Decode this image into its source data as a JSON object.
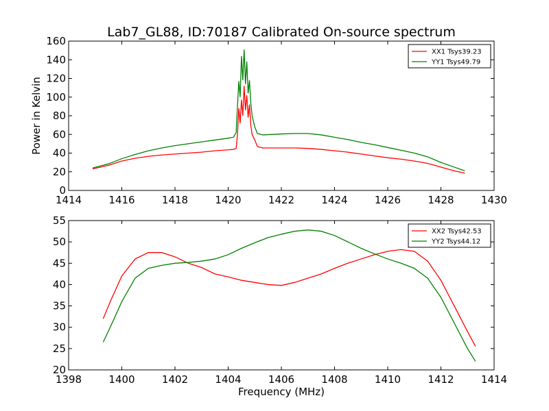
{
  "title": "Lab7_GL88, ID:70187 Calibrated On-source spectrum",
  "chart_data": [
    {
      "type": "line",
      "ylabel": "Power in Kelvin",
      "xlabel": "",
      "xlim": [
        1414,
        1430
      ],
      "ylim": [
        0,
        160
      ],
      "xticks": [
        1414,
        1416,
        1418,
        1420,
        1422,
        1424,
        1426,
        1428,
        1430
      ],
      "yticks": [
        0,
        20,
        40,
        60,
        80,
        100,
        120,
        140,
        160
      ],
      "legend": "top-right",
      "grid": false,
      "series": [
        {
          "name": "XX1 Tsys39.23",
          "color": "#ff0000",
          "points": [
            [
              1414.9,
              23
            ],
            [
              1415.5,
              27
            ],
            [
              1416,
              31.5
            ],
            [
              1416.5,
              34.5
            ],
            [
              1417,
              36.5
            ],
            [
              1417.5,
              38
            ],
            [
              1418,
              39
            ],
            [
              1418.5,
              40
            ],
            [
              1419,
              41
            ],
            [
              1419.5,
              42.5
            ],
            [
              1420,
              43.5
            ],
            [
              1420.2,
              44
            ],
            [
              1420.3,
              45
            ],
            [
              1420.35,
              60
            ],
            [
              1420.4,
              88
            ],
            [
              1420.45,
              72
            ],
            [
              1420.5,
              97
            ],
            [
              1420.55,
              80
            ],
            [
              1420.6,
              112
            ],
            [
              1420.65,
              86
            ],
            [
              1420.7,
              102
            ],
            [
              1420.75,
              78
            ],
            [
              1420.8,
              92
            ],
            [
              1420.85,
              70
            ],
            [
              1420.9,
              60
            ],
            [
              1421,
              54
            ],
            [
              1421.1,
              47
            ],
            [
              1421.3,
              45.5
            ],
            [
              1422,
              45.5
            ],
            [
              1422.5,
              45.5
            ],
            [
              1423,
              45
            ],
            [
              1423.5,
              44
            ],
            [
              1424,
              42.5
            ],
            [
              1424.5,
              41
            ],
            [
              1425,
              39
            ],
            [
              1425.5,
              37
            ],
            [
              1426,
              35
            ],
            [
              1426.5,
              33.5
            ],
            [
              1427,
              31.5
            ],
            [
              1427.5,
              29
            ],
            [
              1428,
              25
            ],
            [
              1428.5,
              21
            ],
            [
              1428.9,
              18.5
            ]
          ]
        },
        {
          "name": "YY1 Tsys49.79",
          "color": "#008000",
          "points": [
            [
              1414.9,
              24
            ],
            [
              1415.5,
              28.5
            ],
            [
              1416,
              34
            ],
            [
              1416.5,
              38.5
            ],
            [
              1417,
              42.5
            ],
            [
              1417.5,
              45.5
            ],
            [
              1418,
              48
            ],
            [
              1418.5,
              50
            ],
            [
              1419,
              52
            ],
            [
              1419.5,
              54
            ],
            [
              1420,
              56
            ],
            [
              1420.2,
              57
            ],
            [
              1420.3,
              62
            ],
            [
              1420.35,
              90
            ],
            [
              1420.4,
              117
            ],
            [
              1420.45,
              100
            ],
            [
              1420.5,
              144
            ],
            [
              1420.55,
              118
            ],
            [
              1420.6,
              151
            ],
            [
              1420.65,
              114
            ],
            [
              1420.7,
              138
            ],
            [
              1420.75,
              104
            ],
            [
              1420.8,
              118
            ],
            [
              1420.85,
              94
            ],
            [
              1420.9,
              80
            ],
            [
              1421,
              68
            ],
            [
              1421.1,
              61
            ],
            [
              1421.3,
              59.5
            ],
            [
              1422,
              60.5
            ],
            [
              1422.5,
              61
            ],
            [
              1423,
              61
            ],
            [
              1423.5,
              59.5
            ],
            [
              1424,
              57
            ],
            [
              1424.5,
              54.5
            ],
            [
              1425,
              51.5
            ],
            [
              1425.5,
              49
            ],
            [
              1426,
              46
            ],
            [
              1426.5,
              43
            ],
            [
              1427,
              40
            ],
            [
              1427.5,
              36
            ],
            [
              1428,
              30
            ],
            [
              1428.5,
              25
            ],
            [
              1428.9,
              21
            ]
          ]
        }
      ]
    },
    {
      "type": "line",
      "ylabel": "",
      "xlabel": "Frequency (MHz)",
      "xlim": [
        1398,
        1414
      ],
      "ylim": [
        20,
        55
      ],
      "xticks": [
        1398,
        1400,
        1402,
        1404,
        1406,
        1408,
        1410,
        1412,
        1414
      ],
      "yticks": [
        20,
        25,
        30,
        35,
        40,
        45,
        50,
        55
      ],
      "legend": "top-right",
      "grid": false,
      "series": [
        {
          "name": "XX2 Tsys42.53",
          "color": "#ff0000",
          "points": [
            [
              1399.3,
              32
            ],
            [
              1399.6,
              36.5
            ],
            [
              1400,
              42
            ],
            [
              1400.5,
              46
            ],
            [
              1401,
              47.5
            ],
            [
              1401.5,
              47.5
            ],
            [
              1402,
              46.5
            ],
            [
              1402.5,
              45
            ],
            [
              1403,
              44
            ],
            [
              1403.5,
              42.5
            ],
            [
              1404,
              41.8
            ],
            [
              1404.5,
              41
            ],
            [
              1405,
              40.5
            ],
            [
              1405.5,
              40
            ],
            [
              1406,
              39.8
            ],
            [
              1406.5,
              40.5
            ],
            [
              1407,
              41.5
            ],
            [
              1407.5,
              42.5
            ],
            [
              1408,
              43.8
            ],
            [
              1408.5,
              45
            ],
            [
              1409,
              46
            ],
            [
              1409.5,
              47
            ],
            [
              1410,
              47.8
            ],
            [
              1410.5,
              48.2
            ],
            [
              1411,
              47.8
            ],
            [
              1411.5,
              45.5
            ],
            [
              1412,
              41
            ],
            [
              1412.5,
              35
            ],
            [
              1413,
              29
            ],
            [
              1413.3,
              25.5
            ]
          ]
        },
        {
          "name": "YY2 Tsys44.12",
          "color": "#008000",
          "points": [
            [
              1399.3,
              26.5
            ],
            [
              1399.6,
              30.5
            ],
            [
              1400,
              36
            ],
            [
              1400.5,
              41.5
            ],
            [
              1401,
              43.8
            ],
            [
              1401.5,
              44.5
            ],
            [
              1402,
              45
            ],
            [
              1402.5,
              45.2
            ],
            [
              1403,
              45.5
            ],
            [
              1403.5,
              46
            ],
            [
              1404,
              47
            ],
            [
              1404.5,
              48.5
            ],
            [
              1405,
              49.8
            ],
            [
              1405.5,
              51
            ],
            [
              1406,
              51.8
            ],
            [
              1406.5,
              52.5
            ],
            [
              1407,
              52.8
            ],
            [
              1407.5,
              52.5
            ],
            [
              1408,
              51.5
            ],
            [
              1408.5,
              50
            ],
            [
              1409,
              48.5
            ],
            [
              1409.5,
              47.2
            ],
            [
              1410,
              46
            ],
            [
              1410.5,
              45
            ],
            [
              1411,
              43.8
            ],
            [
              1411.5,
              41.5
            ],
            [
              1412,
              37
            ],
            [
              1412.5,
              31
            ],
            [
              1413,
              25
            ],
            [
              1413.3,
              22
            ]
          ]
        }
      ]
    }
  ]
}
